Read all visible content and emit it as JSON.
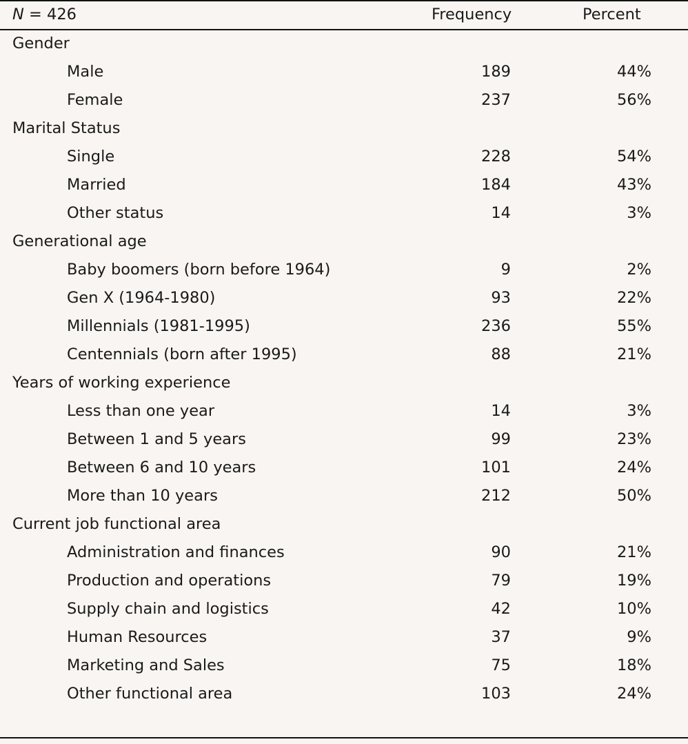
{
  "header": {
    "n_symbol": "N",
    "n_value": "= 426",
    "frequency": "Frequency",
    "percent": "Percent"
  },
  "groups": [
    {
      "label": "Gender",
      "rows": [
        {
          "label": "Male",
          "frequency": "189",
          "percent": "44%"
        },
        {
          "label": "Female",
          "frequency": "237",
          "percent": "56%"
        }
      ]
    },
    {
      "label": "Marital Status",
      "rows": [
        {
          "label": "Single",
          "frequency": "228",
          "percent": "54%"
        },
        {
          "label": "Married",
          "frequency": "184",
          "percent": "43%"
        },
        {
          "label": "Other status",
          "frequency": "14",
          "percent": "3%"
        }
      ]
    },
    {
      "label": "Generational age",
      "rows": [
        {
          "label": "Baby boomers (born before 1964)",
          "frequency": "9",
          "percent": "2%"
        },
        {
          "label": "Gen X (1964-1980)",
          "frequency": "93",
          "percent": "22%"
        },
        {
          "label": "Millennials (1981-1995)",
          "frequency": "236",
          "percent": "55%"
        },
        {
          "label": "Centennials (born after 1995)",
          "frequency": "88",
          "percent": "21%"
        }
      ]
    },
    {
      "label": "Years of working experience",
      "rows": [
        {
          "label": "Less than one year",
          "frequency": "14",
          "percent": "3%"
        },
        {
          "label": "Between 1 and 5 years",
          "frequency": "99",
          "percent": "23%"
        },
        {
          "label": "Between 6 and 10 years",
          "frequency": "101",
          "percent": "24%"
        },
        {
          "label": "More than 10 years",
          "frequency": "212",
          "percent": "50%"
        }
      ]
    },
    {
      "label": "Current job functional area",
      "rows": [
        {
          "label": "Administration and finances",
          "frequency": "90",
          "percent": "21%"
        },
        {
          "label": "Production and operations",
          "frequency": "79",
          "percent": "19%"
        },
        {
          "label": "Supply chain and logistics",
          "frequency": "42",
          "percent": "10%"
        },
        {
          "label": "Human Resources",
          "frequency": "37",
          "percent": "9%"
        },
        {
          "label": "Marketing and Sales",
          "frequency": "75",
          "percent": "18%"
        },
        {
          "label": "Other functional area",
          "frequency": "103",
          "percent": "24%"
        }
      ]
    }
  ]
}
